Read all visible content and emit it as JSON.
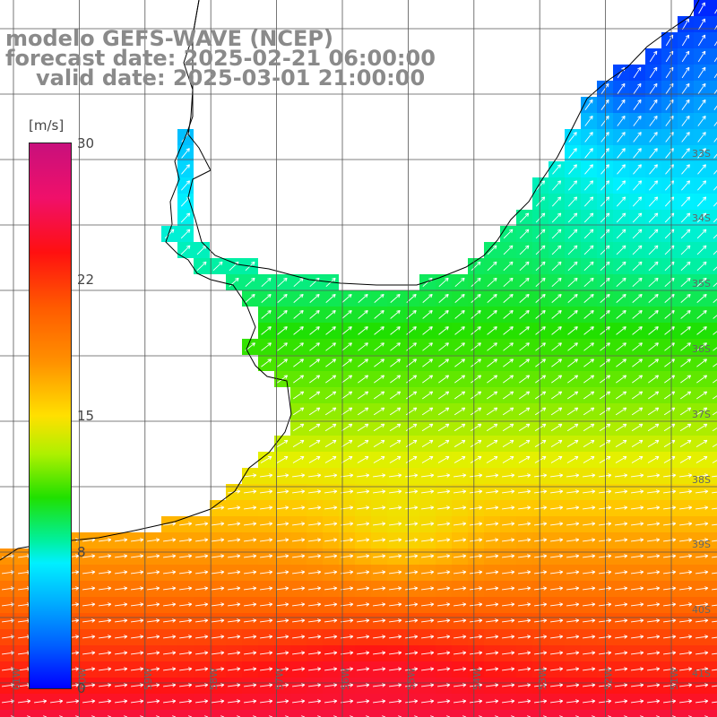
{
  "title": {
    "model": "modelo GEFS-WAVE (NCEP)",
    "forecast": "forecast date: 2025-02-21 06:00:00",
    "valid": "valid date: 2025-03-01 21:00:00"
  },
  "colorbar": {
    "unit": "[m/s]",
    "ticks": [
      {
        "label": "30",
        "value": 30
      },
      {
        "label": "22",
        "value": 22
      },
      {
        "label": "15",
        "value": 15
      },
      {
        "label": "8",
        "value": 8
      },
      {
        "label": "0",
        "value": 0
      }
    ]
  },
  "lat_labels": [
    "33S",
    "34S",
    "35S",
    "36S",
    "37S",
    "38S",
    "39S",
    "40S",
    "41S"
  ],
  "lon_labels": [
    "61W",
    "60W",
    "59W",
    "58W",
    "57W",
    "56W",
    "55W",
    "54W",
    "53W",
    "52W",
    "51W"
  ],
  "colors": {
    "land": "#ffffff",
    "coast": "#000000",
    "grid": "#555555",
    "arrow": "#ffffff"
  },
  "chart_data": {
    "type": "heatmap",
    "description_field": "wind speed with direction vectors",
    "speed_range": [
      0,
      30
    ],
    "lat_range": [
      -41,
      -32
    ],
    "lon_range": [
      -61.5,
      -50.5
    ]
  }
}
